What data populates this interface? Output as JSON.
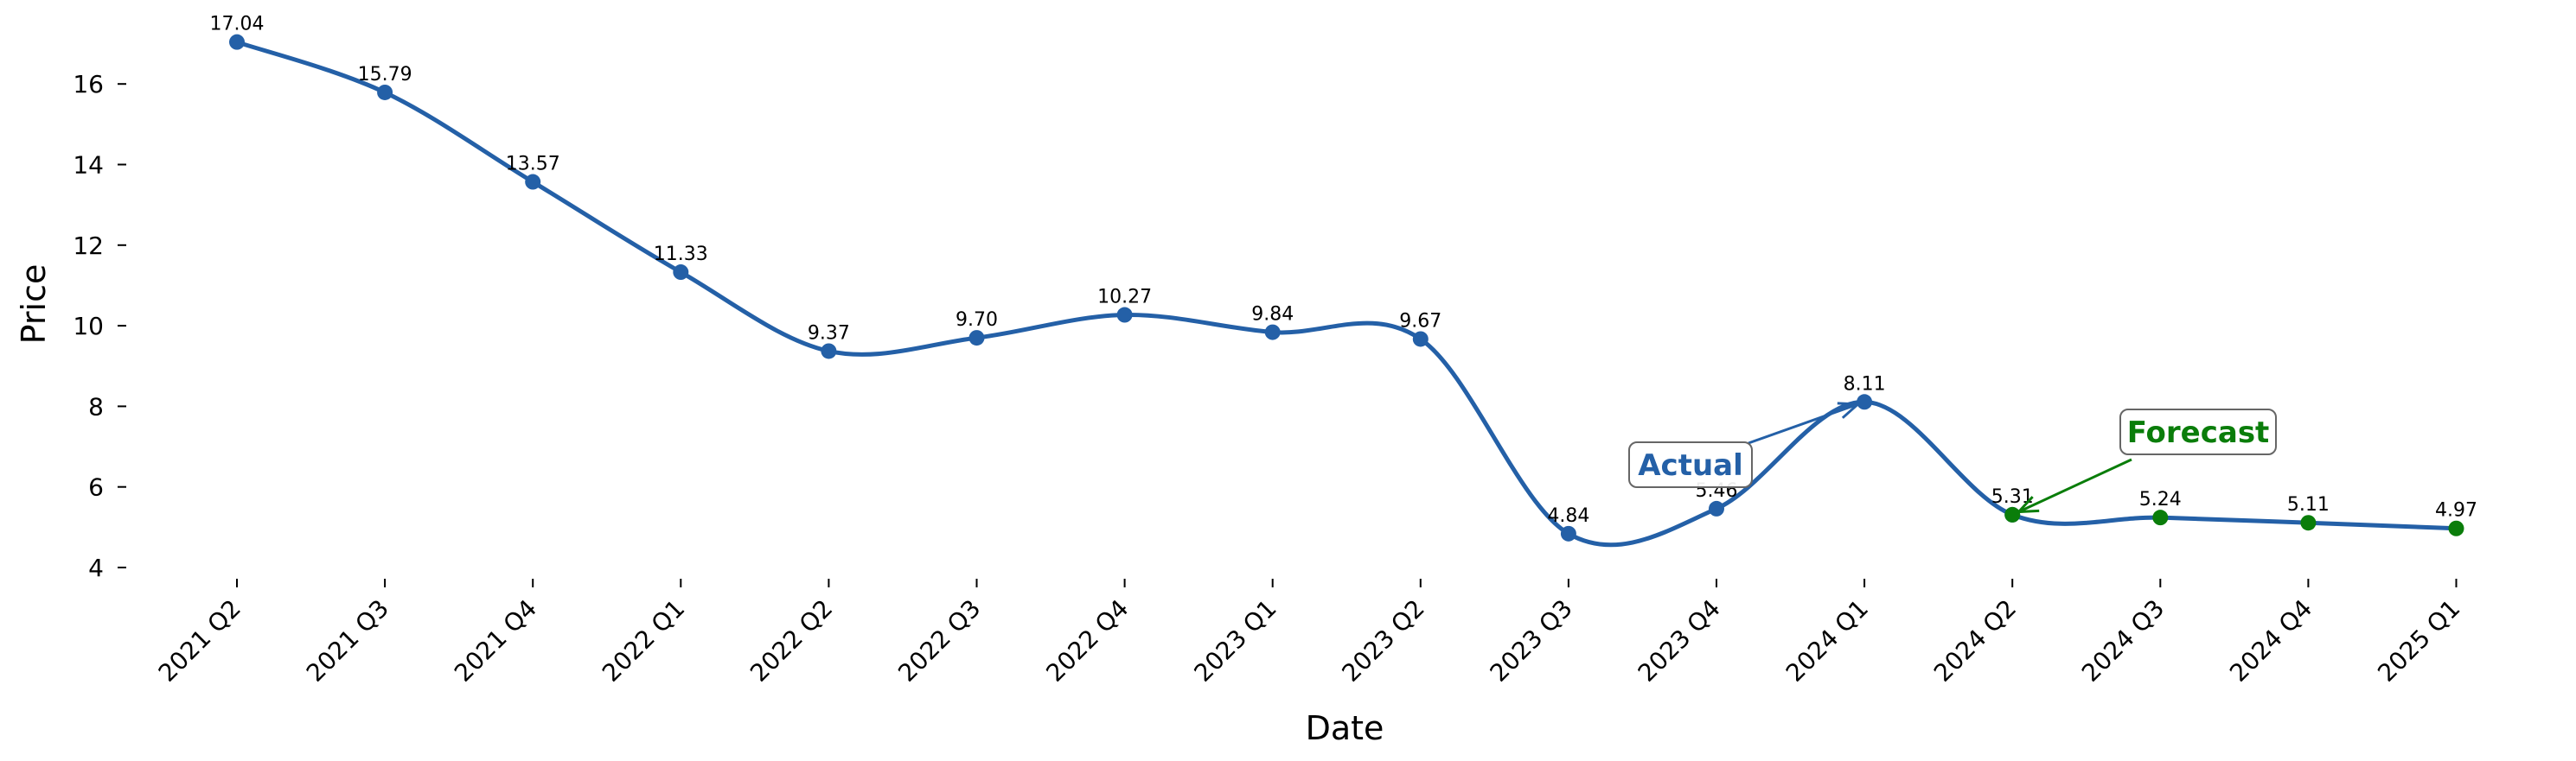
{
  "chart_data": {
    "type": "line",
    "title": "",
    "xlabel": "Date",
    "ylabel": "Price",
    "categories": [
      "2021 Q2",
      "2021 Q3",
      "2021 Q4",
      "2022 Q1",
      "2022 Q2",
      "2022 Q3",
      "2022 Q4",
      "2023 Q1",
      "2023 Q2",
      "2023 Q3",
      "2023 Q4",
      "2024 Q1",
      "2024 Q2",
      "2024 Q3",
      "2024 Q4",
      "2025 Q1"
    ],
    "series": [
      {
        "values": [
          17.04,
          15.79,
          13.57,
          11.33,
          9.37,
          9.7,
          10.27,
          9.84,
          9.67,
          4.84,
          5.46,
          8.11,
          5.31,
          null,
          null,
          null
        ],
        "labels": [
          "17.04",
          "15.79",
          "13.57",
          "11.33",
          "9.37",
          "9.70",
          "10.27",
          "9.84",
          "9.67",
          "4.84",
          "5.46",
          "8.11",
          "5.31",
          "",
          "",
          ""
        ],
        "color": "#2460a7"
      },
      {
        "values": [
          null,
          null,
          null,
          null,
          null,
          null,
          null,
          null,
          null,
          null,
          null,
          null,
          5.31,
          5.24,
          5.11,
          4.97
        ],
        "labels": [
          "",
          "",
          "",
          "",
          "",
          "",
          "",
          "",
          "",
          "",
          "",
          "",
          "",
          "5.24",
          "5.11",
          "4.97"
        ],
        "color": "#0a7d0a"
      }
    ],
    "yticks": [
      4,
      6,
      8,
      10,
      12,
      14,
      16
    ],
    "ylim": [
      3.6,
      17.4
    ],
    "grid": false,
    "annotations": [
      {
        "text": "Actual",
        "target_index": 11,
        "color": "#2460a7"
      },
      {
        "text": "Forecast",
        "target_index": 12,
        "color": "#0a7d0a"
      }
    ]
  }
}
